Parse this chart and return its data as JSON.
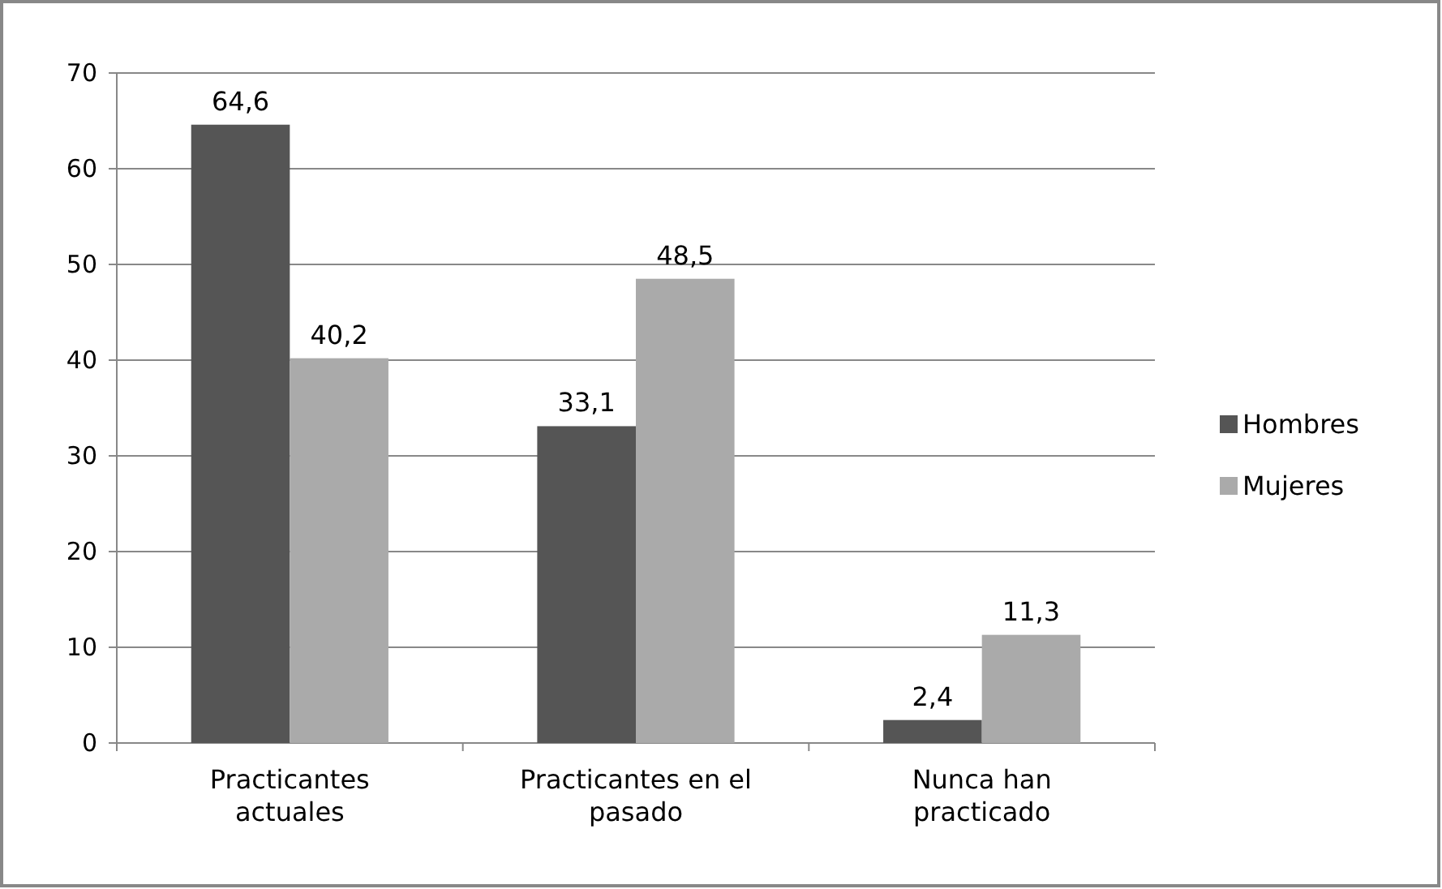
{
  "chart_data": {
    "type": "bar",
    "categories": [
      "Practicantes actuales",
      "Practicantes en el pasado",
      "Nunca han practicado"
    ],
    "series": [
      {
        "name": "Hombres",
        "color": "#555555",
        "values": [
          64.6,
          33.1,
          2.4
        ],
        "value_labels": [
          "64,6",
          "33,1",
          "2,4"
        ]
      },
      {
        "name": "Mujeres",
        "color": "#aaaaaa",
        "values": [
          40.2,
          48.5,
          11.3
        ],
        "value_labels": [
          "40,2",
          "48,5",
          "11,3"
        ]
      }
    ],
    "ylim": [
      0,
      70
    ],
    "yticks": [
      0,
      10,
      20,
      30,
      40,
      50,
      60,
      70
    ],
    "grid": "y",
    "legend": "right"
  }
}
